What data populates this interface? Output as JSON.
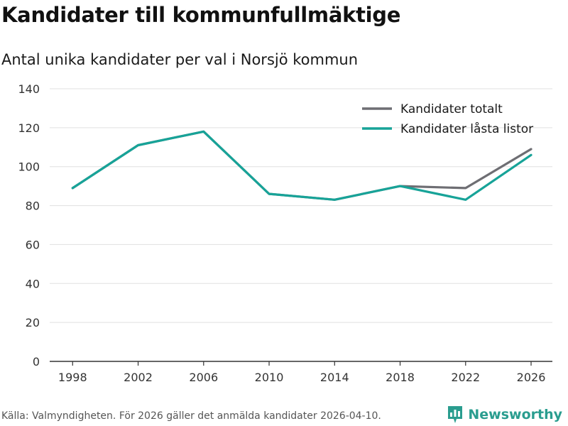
{
  "header": {
    "title": "Kandidater till kommunfullmäktige",
    "subtitle": "Antal unika kandidater per val i Norsjö kommun"
  },
  "footer": {
    "source": "Källa: Valmyndigheten. För 2026 gäller det anmälda kandidater 2026-04-10.",
    "brand": "Newsworthy"
  },
  "colors": {
    "series_total": "#6e6e73",
    "series_locked": "#17a398",
    "brand": "#2a9d8f",
    "grid": "#e0e0e0",
    "axis": "#333333"
  },
  "chart_data": {
    "type": "line",
    "title": "Kandidater till kommunfullmäktige",
    "subtitle": "Antal unika kandidater per val i Norsjö kommun",
    "xlabel": "",
    "ylabel": "",
    "x": [
      1998,
      2002,
      2006,
      2010,
      2014,
      2018,
      2022,
      2026
    ],
    "xlim": [
      1996.6,
      2027.3
    ],
    "ylim": [
      0,
      140
    ],
    "yticks": [
      0,
      20,
      40,
      60,
      80,
      100,
      120,
      140
    ],
    "grid": true,
    "legend_position": "top-right",
    "series": [
      {
        "name": "Kandidater totalt",
        "values": [
          89,
          111,
          118,
          86,
          83,
          90,
          89,
          109
        ]
      },
      {
        "name": "Kandidater låsta listor",
        "values": [
          89,
          111,
          118,
          86,
          83,
          90,
          83,
          106
        ]
      }
    ]
  }
}
